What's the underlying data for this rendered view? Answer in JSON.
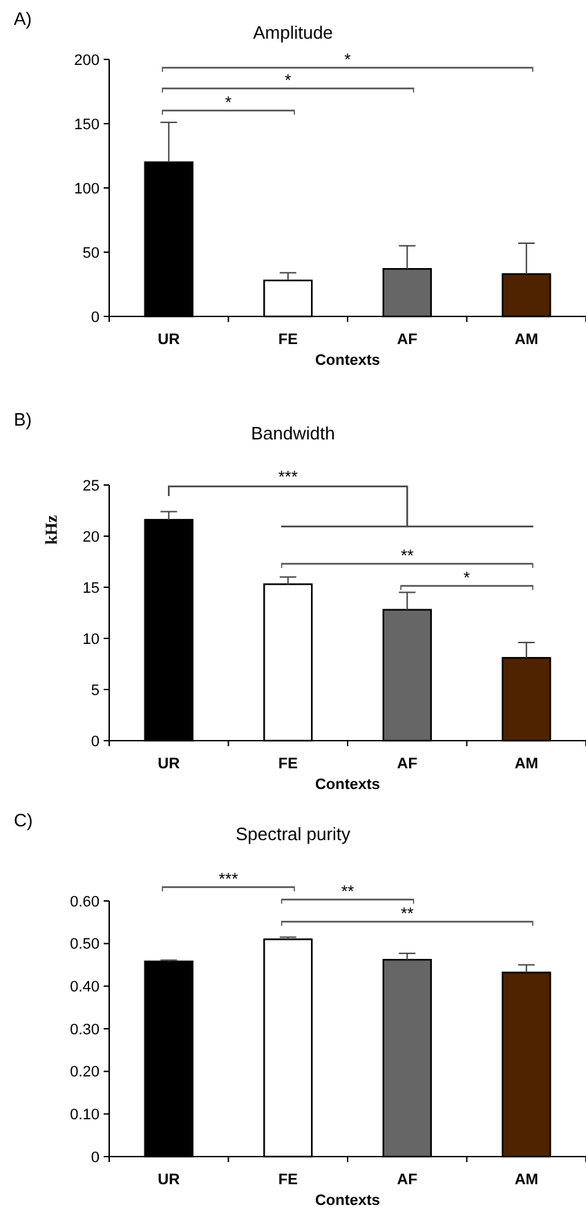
{
  "chart_data": [
    {
      "type": "bar",
      "title": "Amplitude",
      "xlabel": "Contexts",
      "categories": [
        "UR",
        "FE",
        "AF",
        "AM"
      ],
      "values": [
        120,
        28,
        37,
        33
      ],
      "colors": [
        "#000000",
        "#ffffff",
        "#666666",
        "#4f2200"
      ],
      "errors": [
        [
          120,
          151
        ],
        [
          28,
          34
        ],
        [
          37,
          55
        ],
        [
          33,
          57
        ]
      ],
      "ylim": [
        0,
        200
      ],
      "yticks": [
        0,
        50,
        100,
        150,
        200
      ],
      "grid": false,
      "annotations": [
        "A)",
        "*",
        "*",
        "*"
      ]
    },
    {
      "type": "bar",
      "title": "Bandwidth",
      "xlabel": "Contexts",
      "ylabel": "kHz",
      "categories": [
        "UR",
        "FE",
        "AF",
        "AM"
      ],
      "values": [
        21.6,
        15.3,
        12.8,
        8.1
      ],
      "colors": [
        "#000000",
        "#ffffff",
        "#666666",
        "#4f2200"
      ],
      "errors": [
        [
          21.6,
          22.4
        ],
        [
          15.3,
          16.0
        ],
        [
          12.8,
          14.5
        ],
        [
          8.1,
          9.6
        ]
      ],
      "ylim": [
        0,
        25
      ],
      "yticks": [
        0,
        5,
        10,
        15,
        20,
        25
      ],
      "grid": false,
      "annotations": [
        "B)",
        "***",
        "**",
        "*"
      ]
    },
    {
      "type": "bar",
      "title": "Spectral purity",
      "xlabel": "Contexts",
      "categories": [
        "UR",
        "FE",
        "AF",
        "AM"
      ],
      "values": [
        0.458,
        0.51,
        0.462,
        0.432
      ],
      "colors": [
        "#000000",
        "#ffffff",
        "#666666",
        "#4f2200"
      ],
      "errors": [
        [
          0.458,
          0.461
        ],
        [
          0.51,
          0.515
        ],
        [
          0.462,
          0.477
        ],
        [
          0.432,
          0.45
        ]
      ],
      "ylim": [
        0,
        0.6
      ],
      "yticks": [
        0,
        {
          "value": 0.1,
          "label": "0.10"
        },
        {
          "value": 0.2,
          "label": "0.20"
        },
        {
          "value": 0.3,
          "label": "0.30"
        },
        {
          "value": 0.4,
          "label": "0.40"
        },
        {
          "value": 0.5,
          "label": "0.50"
        },
        {
          "value": 0.6,
          "label": "0.60"
        }
      ],
      "grid": false,
      "annotations": [
        "C)",
        "***",
        "**",
        "**"
      ]
    }
  ]
}
